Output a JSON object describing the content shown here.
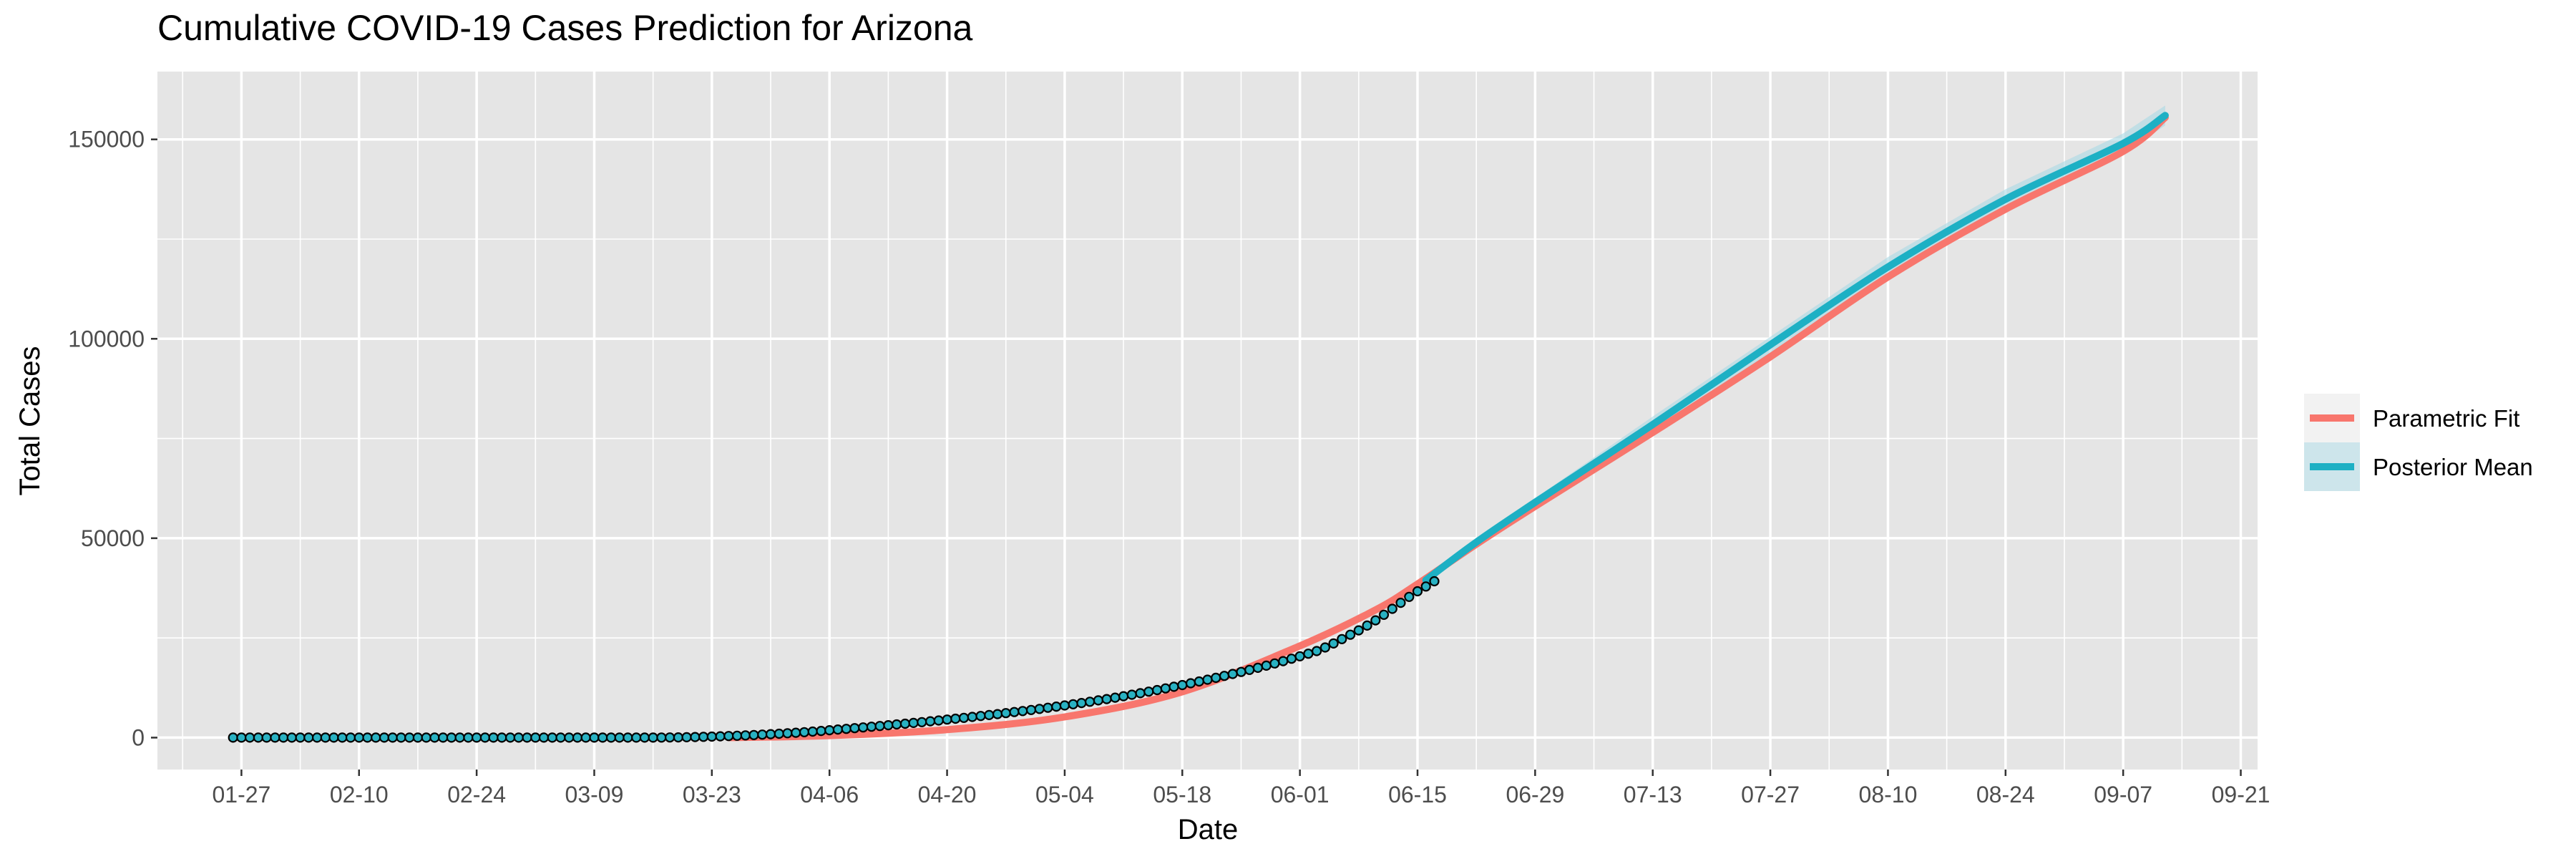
{
  "chart_data": {
    "type": "line",
    "title": "Cumulative COVID-19 Cases Prediction for Arizona",
    "xlabel": "Date",
    "ylabel": "Total Cases",
    "x_range": [
      "2020-01-17",
      "2020-09-23"
    ],
    "ylim": [
      -8000,
      167000
    ],
    "x_ticks": [
      {
        "date": "2020-01-27",
        "label": "01-27"
      },
      {
        "date": "2020-02-10",
        "label": "02-10"
      },
      {
        "date": "2020-02-24",
        "label": "02-24"
      },
      {
        "date": "2020-03-09",
        "label": "03-09"
      },
      {
        "date": "2020-03-23",
        "label": "03-23"
      },
      {
        "date": "2020-04-06",
        "label": "04-06"
      },
      {
        "date": "2020-04-20",
        "label": "04-20"
      },
      {
        "date": "2020-05-04",
        "label": "05-04"
      },
      {
        "date": "2020-05-18",
        "label": "05-18"
      },
      {
        "date": "2020-06-01",
        "label": "06-01"
      },
      {
        "date": "2020-06-15",
        "label": "06-15"
      },
      {
        "date": "2020-06-29",
        "label": "06-29"
      },
      {
        "date": "2020-07-13",
        "label": "07-13"
      },
      {
        "date": "2020-07-27",
        "label": "07-27"
      },
      {
        "date": "2020-08-10",
        "label": "08-10"
      },
      {
        "date": "2020-08-24",
        "label": "08-24"
      },
      {
        "date": "2020-09-07",
        "label": "09-07"
      },
      {
        "date": "2020-09-21",
        "label": "09-21"
      }
    ],
    "y_ticks": [
      {
        "value": 0,
        "label": "0"
      },
      {
        "value": 50000,
        "label": "50000"
      },
      {
        "value": 100000,
        "label": "100000"
      },
      {
        "value": 150000,
        "label": "150000"
      }
    ],
    "grid": true,
    "legend": {
      "position": "right",
      "entries": [
        "Parametric Fit",
        "Posterior Mean"
      ]
    },
    "series": [
      {
        "name": "Parametric Fit",
        "color": "#F8766D",
        "points": [
          [
            "2020-03-25",
            0
          ],
          [
            "2020-04-06",
            500
          ],
          [
            "2020-04-20",
            2000
          ],
          [
            "2020-05-04",
            5200
          ],
          [
            "2020-05-18",
            11500
          ],
          [
            "2020-06-01",
            23000
          ],
          [
            "2020-06-10",
            32000
          ],
          [
            "2020-06-15",
            38500
          ],
          [
            "2020-06-22",
            48500
          ],
          [
            "2020-06-29",
            58000
          ],
          [
            "2020-07-13",
            76500
          ],
          [
            "2020-07-27",
            95500
          ],
          [
            "2020-08-10",
            115500
          ],
          [
            "2020-08-24",
            132500
          ],
          [
            "2020-09-07",
            147000
          ],
          [
            "2020-09-12",
            155500
          ]
        ]
      },
      {
        "name": "Posterior Mean",
        "color": "#1DB0C4",
        "band_color": "#A8D8E4",
        "points": [
          [
            "2020-06-16",
            39500
          ],
          [
            "2020-06-22",
            49000
          ],
          [
            "2020-06-29",
            59000
          ],
          [
            "2020-07-13",
            78500
          ],
          [
            "2020-07-27",
            98500
          ],
          [
            "2020-08-10",
            118000
          ],
          [
            "2020-08-24",
            135000
          ],
          [
            "2020-09-07",
            149000
          ],
          [
            "2020-09-12",
            156000
          ]
        ],
        "band": [
          [
            "2020-06-16",
            39500,
            39500
          ],
          [
            "2020-06-22",
            48500,
            49500
          ],
          [
            "2020-06-29",
            58000,
            60000
          ],
          [
            "2020-07-13",
            77000,
            80500
          ],
          [
            "2020-07-27",
            96500,
            100500
          ],
          [
            "2020-08-10",
            116000,
            120500
          ],
          [
            "2020-08-24",
            133000,
            137500
          ],
          [
            "2020-09-07",
            146500,
            151500
          ],
          [
            "2020-09-12",
            153500,
            158500
          ]
        ]
      }
    ],
    "observed": {
      "fill": "#29B1C2",
      "stroke": "#000000",
      "start": "2020-01-26",
      "values": [
        0,
        0,
        0,
        0,
        0,
        0,
        0,
        0,
        0,
        0,
        0,
        0,
        0,
        0,
        0,
        0,
        0,
        0,
        0,
        0,
        0,
        0,
        0,
        0,
        0,
        0,
        0,
        0,
        0,
        0,
        0,
        0,
        0,
        0,
        0,
        0,
        0,
        0,
        0,
        0,
        0,
        0,
        0,
        0,
        0,
        0,
        0,
        0,
        0,
        0,
        0,
        20,
        40,
        60,
        100,
        150,
        200,
        260,
        330,
        400,
        480,
        570,
        660,
        760,
        870,
        980,
        1100,
        1230,
        1370,
        1520,
        1680,
        1850,
        2030,
        2200,
        2380,
        2560,
        2740,
        2920,
        3110,
        3300,
        3490,
        3690,
        3890,
        4090,
        4300,
        4520,
        4740,
        4960,
        5190,
        5420,
        5660,
        5900,
        6150,
        6410,
        6670,
        6940,
        7210,
        7490,
        7780,
        8070,
        8370,
        8680,
        9000,
        9330,
        9670,
        10020,
        10380,
        10750,
        11130,
        11520,
        11920,
        12330,
        12750,
        13180,
        13620,
        14070,
        14530,
        15000,
        15480,
        15970,
        16470,
        16980,
        17500,
        18040,
        18600,
        19180,
        19780,
        20400,
        21040,
        21710,
        22600,
        23600,
        24700,
        25800,
        26900,
        28100,
        29400,
        30800,
        32300,
        33800,
        35300,
        36700,
        37900,
        39200
      ]
    }
  }
}
